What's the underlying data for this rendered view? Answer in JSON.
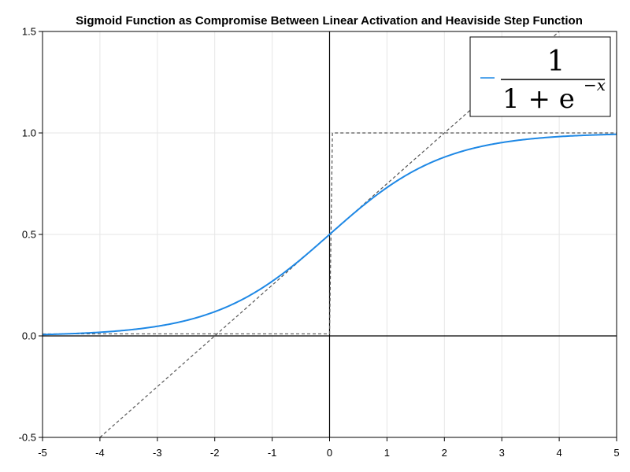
{
  "chart_data": {
    "type": "line",
    "title": "Sigmoid Function as Compromise Between Linear Activation and Heaviside Step Function",
    "xlabel": "",
    "ylabel": "",
    "xlim": [
      -5,
      5
    ],
    "ylim": [
      -0.5,
      1.5
    ],
    "xticks": [
      -5,
      -4,
      -3,
      -2,
      -1,
      0,
      1,
      2,
      3,
      4,
      5
    ],
    "yticks": [
      -0.5,
      0.0,
      0.5,
      1.0,
      1.5
    ],
    "xtick_labels": [
      "-5",
      "-4",
      "-3",
      "-2",
      "-1",
      "0",
      "1",
      "2",
      "3",
      "4",
      "5"
    ],
    "ytick_labels": [
      "-0.5",
      "0.0",
      "0.5",
      "1.0",
      "1.5"
    ],
    "grid": true,
    "legend_position": "top-right",
    "legend": {
      "numerator": "1",
      "denominator_base": "1 + e",
      "exponent": "−x"
    },
    "series": [
      {
        "kind": "function",
        "function": "sigmoid",
        "color": "#1e88e5",
        "style": "solid",
        "x": [
          -5,
          -4.5,
          -4,
          -3.5,
          -3,
          -2.5,
          -2,
          -1.5,
          -1,
          -0.5,
          0,
          0.5,
          1,
          1.5,
          2,
          2.5,
          3,
          3.5,
          4,
          4.5,
          5
        ],
        "values": [
          0.0067,
          0.011,
          0.018,
          0.029,
          0.047,
          0.076,
          0.119,
          0.182,
          0.269,
          0.378,
          0.5,
          0.622,
          0.731,
          0.818,
          0.881,
          0.924,
          0.953,
          0.971,
          0.982,
          0.989,
          0.993
        ]
      },
      {
        "kind": "function",
        "function": "linear",
        "color": "#555555",
        "style": "dashed",
        "x": [
          -4,
          4
        ],
        "values": [
          -0.5,
          1.5
        ]
      },
      {
        "kind": "step",
        "function": "heaviside",
        "color": "#555555",
        "style": "dashed",
        "x": [
          -5,
          0,
          0.05,
          5
        ],
        "values": [
          0.01,
          0.01,
          1.0,
          1.0
        ]
      }
    ],
    "zero_lines": {
      "x": 0,
      "y": 0,
      "color": "#000000"
    }
  }
}
